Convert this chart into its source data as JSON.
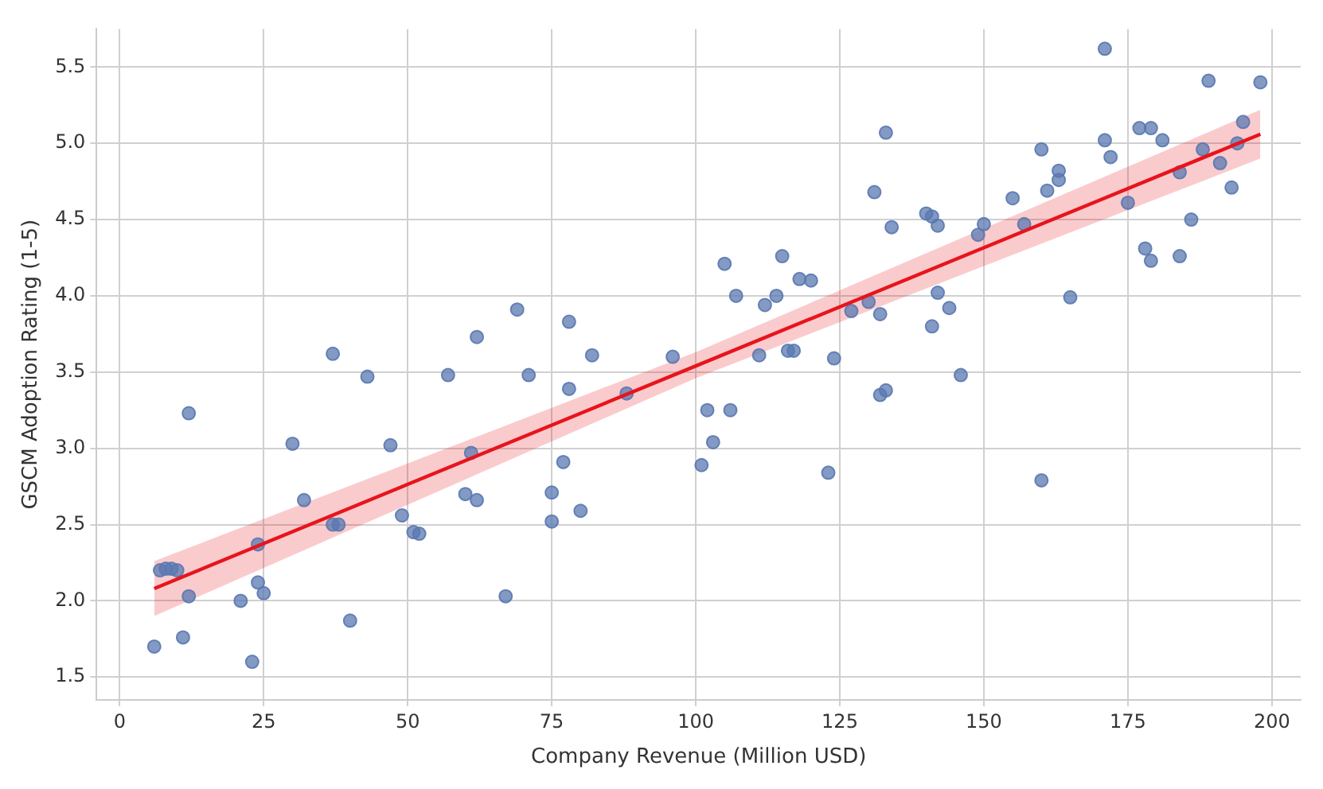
{
  "chart_data": {
    "type": "scatter",
    "xlabel": "Company Revenue (Million USD)",
    "ylabel": "GSCM Adoption Rating (1-5)",
    "xlim": [
      -4,
      205
    ],
    "ylim": [
      1.35,
      5.75
    ],
    "xticks": [
      0,
      25,
      50,
      75,
      100,
      125,
      150,
      175,
      200
    ],
    "yticks": [
      {
        "value": 1.5,
        "label": "1.5"
      },
      {
        "value": 2,
        "label": "2.0"
      },
      {
        "value": 2.5,
        "label": "2.5"
      },
      {
        "value": 3,
        "label": "3.0"
      },
      {
        "value": 3.5,
        "label": "3.5"
      },
      {
        "value": 4,
        "label": "4.0"
      },
      {
        "value": 4.5,
        "label": "4.5"
      },
      {
        "value": 5,
        "label": "5.0"
      },
      {
        "value": 5.5,
        "label": "5.5"
      }
    ],
    "grid": true,
    "marker": "circle",
    "series": [
      {
        "color": "#5a78b0",
        "x": [
          6,
          7,
          8,
          9,
          10,
          11,
          12,
          12,
          21,
          23,
          24,
          24,
          25,
          30,
          32,
          37,
          37,
          38,
          40,
          43,
          47,
          49,
          51,
          52,
          57,
          60,
          61,
          62,
          62,
          67,
          69,
          71,
          75,
          75,
          77,
          78,
          78,
          80,
          82,
          88,
          96,
          101,
          102,
          103,
          105,
          106,
          107,
          111,
          112,
          114,
          115,
          116,
          117,
          118,
          120,
          123,
          124,
          127,
          130,
          131,
          132,
          132,
          133,
          133,
          134,
          140,
          141,
          141,
          142,
          142,
          144,
          146,
          149,
          150,
          155,
          157,
          160,
          160,
          161,
          163,
          163,
          165,
          171,
          171,
          172,
          175,
          177,
          178,
          179,
          179,
          181,
          184,
          184,
          186,
          188,
          189,
          191,
          193,
          194,
          195,
          198
        ],
        "values": [
          1.7,
          2.2,
          2.21,
          2.21,
          2.2,
          1.76,
          3.23,
          2.03,
          2.0,
          1.6,
          2.37,
          2.12,
          2.05,
          3.03,
          2.66,
          3.62,
          2.5,
          2.5,
          1.87,
          3.47,
          3.02,
          2.56,
          2.45,
          2.44,
          3.48,
          2.7,
          2.97,
          3.73,
          2.66,
          2.03,
          3.91,
          3.48,
          2.71,
          2.52,
          2.91,
          3.39,
          3.83,
          2.59,
          3.61,
          3.36,
          3.6,
          2.89,
          3.25,
          3.04,
          4.21,
          3.25,
          4.0,
          3.61,
          3.94,
          4.0,
          4.26,
          3.64,
          3.64,
          4.11,
          4.1,
          2.84,
          3.59,
          3.9,
          3.96,
          4.68,
          3.35,
          3.88,
          3.38,
          5.07,
          4.45,
          4.54,
          3.8,
          4.52,
          4.46,
          4.02,
          3.92,
          3.48,
          4.4,
          4.47,
          4.64,
          4.47,
          2.79,
          4.96,
          4.69,
          4.76,
          4.82,
          3.99,
          5.62,
          5.02,
          4.91,
          4.61,
          5.1,
          4.31,
          4.23,
          5.1,
          5.02,
          4.26,
          4.81,
          4.5,
          4.96,
          5.41,
          4.87,
          4.71,
          5.0,
          5.14,
          5.4
        ]
      },
      {
        "type": "line",
        "marker": "none",
        "color": "#e8141c",
        "x": [
          6,
          100,
          198
        ],
        "values": [
          2.08,
          3.54,
          5.06
        ],
        "lower": [
          1.9,
          3.46,
          4.9
        ],
        "upper": [
          2.26,
          3.63,
          5.22
        ]
      }
    ]
  }
}
